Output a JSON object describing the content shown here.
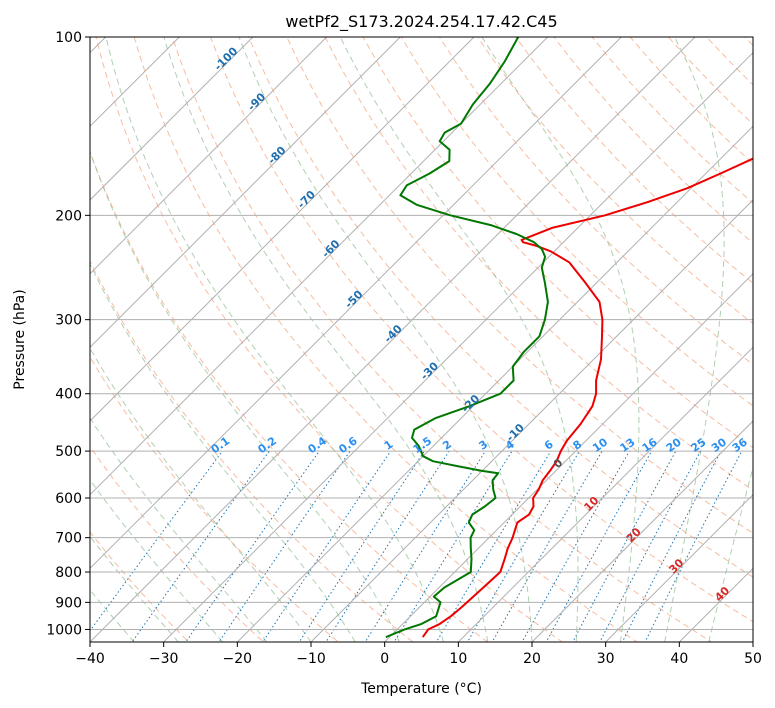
{
  "chart_data": {
    "type": "line",
    "title": "wetPf2_S173.2024.254.17.42.C45",
    "xlabel": "Temperature (°C)",
    "ylabel": "Pressure (hPa)",
    "xlim": [
      -40,
      50
    ],
    "ylim": [
      1050,
      100
    ],
    "y_scale": "log",
    "grid": true,
    "x_ticks": [
      -40,
      -30,
      -20,
      -10,
      0,
      10,
      20,
      30,
      40,
      50
    ],
    "x_tick_labels": [
      "−40",
      "−30",
      "−20",
      "−10",
      "0",
      "10",
      "20",
      "30",
      "40",
      "50"
    ],
    "y_ticks": [
      1000,
      900,
      800,
      700,
      600,
      500,
      400,
      300,
      200,
      100
    ],
    "y_tick_labels": [
      "1000",
      "900",
      "800",
      "700",
      "600",
      "500",
      "400",
      "300",
      "200",
      "100"
    ],
    "series": [
      {
        "color": "#ee0000",
        "points": [
          [
            1030,
            4.5
          ],
          [
            1000,
            4.2
          ],
          [
            980,
            5.0
          ],
          [
            950,
            5.5
          ],
          [
            920,
            5.7
          ],
          [
            900,
            5.8
          ],
          [
            850,
            6.0
          ],
          [
            800,
            6.2
          ],
          [
            760,
            5.0
          ],
          [
            730,
            4.0
          ],
          [
            700,
            3.2
          ],
          [
            680,
            2.5
          ],
          [
            660,
            1.8
          ],
          [
            640,
            2.3
          ],
          [
            620,
            1.8
          ],
          [
            600,
            0.6
          ],
          [
            580,
            0.2
          ],
          [
            560,
            -0.5
          ],
          [
            540,
            -0.8
          ],
          [
            520,
            -1.2
          ],
          [
            500,
            -2.0
          ],
          [
            480,
            -2.6
          ],
          [
            450,
            -3.0
          ],
          [
            420,
            -3.8
          ],
          [
            400,
            -5.0
          ],
          [
            380,
            -6.8
          ],
          [
            350,
            -9.0
          ],
          [
            320,
            -12.0
          ],
          [
            300,
            -14.2
          ],
          [
            280,
            -17.0
          ],
          [
            260,
            -21.5
          ],
          [
            240,
            -26.5
          ],
          [
            230,
            -30.5
          ],
          [
            225,
            -33.3
          ],
          [
            222,
            -35.5
          ],
          [
            220,
            -36.0
          ],
          [
            210,
            -33.5
          ],
          [
            200,
            -28.0
          ],
          [
            190,
            -24.0
          ],
          [
            180,
            -20.5
          ],
          [
            170,
            -18.0
          ],
          [
            160,
            -15.5
          ],
          [
            150,
            -14.5
          ],
          [
            140,
            -13.3
          ],
          [
            130,
            -13.5
          ],
          [
            120,
            -14.3
          ],
          [
            110,
            -16.0
          ],
          [
            100,
            -19.0
          ]
        ]
      },
      {
        "color": "#007700",
        "points": [
          [
            1030,
            -0.5
          ],
          [
            1000,
            1.0
          ],
          [
            980,
            2.5
          ],
          [
            950,
            3.5
          ],
          [
            900,
            2.2
          ],
          [
            880,
            0.5
          ],
          [
            850,
            0.7
          ],
          [
            800,
            2.2
          ],
          [
            760,
            0.5
          ],
          [
            730,
            -1.0
          ],
          [
            700,
            -2.5
          ],
          [
            680,
            -3.0
          ],
          [
            660,
            -4.8
          ],
          [
            640,
            -5.4
          ],
          [
            620,
            -4.8
          ],
          [
            600,
            -4.5
          ],
          [
            580,
            -6.0
          ],
          [
            560,
            -7.3
          ],
          [
            545,
            -7.5
          ],
          [
            540,
            -10.0
          ],
          [
            530,
            -14.0
          ],
          [
            520,
            -18.0
          ],
          [
            510,
            -20.0
          ],
          [
            490,
            -22.0
          ],
          [
            475,
            -24.0
          ],
          [
            460,
            -24.8
          ],
          [
            440,
            -23.5
          ],
          [
            420,
            -20.5
          ],
          [
            400,
            -18.0
          ],
          [
            380,
            -18.0
          ],
          [
            360,
            -20.0
          ],
          [
            340,
            -20.5
          ],
          [
            320,
            -20.5
          ],
          [
            300,
            -22.0
          ],
          [
            280,
            -24.0
          ],
          [
            260,
            -27.0
          ],
          [
            245,
            -29.5
          ],
          [
            235,
            -30.5
          ],
          [
            228,
            -32.0
          ],
          [
            222,
            -34.0
          ],
          [
            215,
            -37.5
          ],
          [
            208,
            -42.0
          ],
          [
            200,
            -49.0
          ],
          [
            192,
            -55.0
          ],
          [
            185,
            -58.5
          ],
          [
            178,
            -59.0
          ],
          [
            170,
            -57.5
          ],
          [
            162,
            -56.5
          ],
          [
            155,
            -58.0
          ],
          [
            150,
            -60.5
          ],
          [
            145,
            -61.0
          ],
          [
            140,
            -60.0
          ],
          [
            130,
            -61.0
          ],
          [
            120,
            -61.5
          ],
          [
            110,
            -62.5
          ],
          [
            100,
            -64.0
          ]
        ]
      }
    ],
    "dry_adiabat_labels": [
      "-100",
      "-90",
      "-80",
      "-70",
      "-60",
      "-50",
      "-40",
      "-30",
      "-20",
      "-10",
      "0",
      "10",
      "20",
      "30",
      "40"
    ],
    "mixing_ratio_labels": [
      "0.1",
      "0.2",
      "0.4",
      "0.6",
      "1",
      "1.5",
      "2",
      "3",
      "4",
      "6",
      "8",
      "10",
      "13",
      "16",
      "20",
      "25",
      "30",
      "36"
    ]
  }
}
